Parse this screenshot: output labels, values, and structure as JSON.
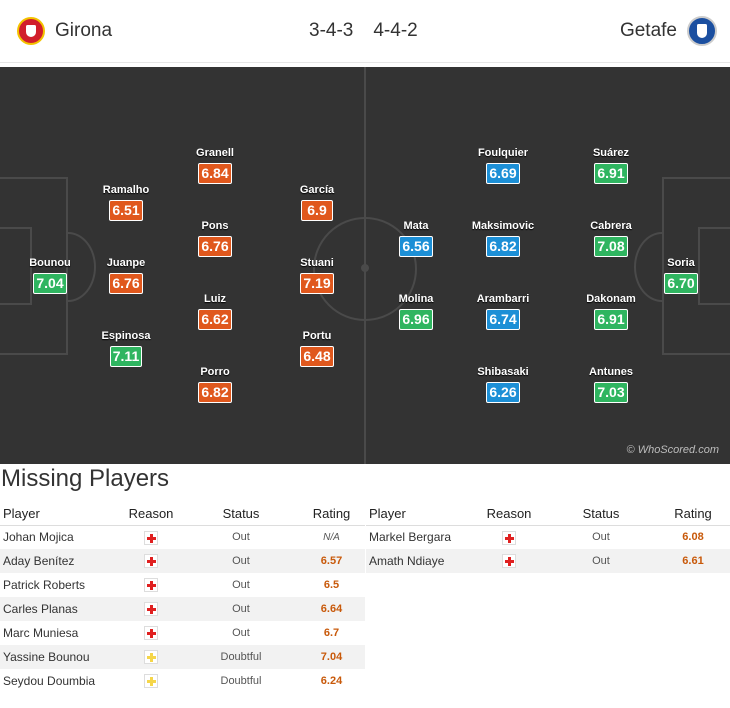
{
  "header": {
    "home_team": "Girona",
    "away_team": "Getafe",
    "home_formation": "3-4-3",
    "away_formation": "4-4-2"
  },
  "colors": {
    "rating_green": "#2fb560",
    "rating_orange": "#e0581d",
    "rating_blue": "#1c8fd6",
    "injury_red": "#e02020",
    "doubtful_yellow": "#f5d64a"
  },
  "pitch": {
    "watermark": "© WhoScored.com",
    "home_players": [
      {
        "name": "Bounou",
        "rating": "7.04",
        "color": "#2fb560"
      },
      {
        "name": "Ramalho",
        "rating": "6.51",
        "color": "#e0581d"
      },
      {
        "name": "Juanpe",
        "rating": "6.76",
        "color": "#e0581d"
      },
      {
        "name": "Espinosa",
        "rating": "7.11",
        "color": "#2fb560"
      },
      {
        "name": "Granell",
        "rating": "6.84",
        "color": "#e0581d"
      },
      {
        "name": "Pons",
        "rating": "6.76",
        "color": "#e0581d"
      },
      {
        "name": "Luiz",
        "rating": "6.62",
        "color": "#e0581d"
      },
      {
        "name": "Porro",
        "rating": "6.82",
        "color": "#e0581d"
      },
      {
        "name": "García",
        "rating": "6.9",
        "color": "#e0581d"
      },
      {
        "name": "Stuani",
        "rating": "7.19",
        "color": "#e0581d"
      },
      {
        "name": "Portu",
        "rating": "6.48",
        "color": "#e0581d"
      }
    ],
    "away_players": [
      {
        "name": "Mata",
        "rating": "6.56",
        "color": "#1c8fd6"
      },
      {
        "name": "Molina",
        "rating": "6.96",
        "color": "#2fb560"
      },
      {
        "name": "Foulquier",
        "rating": "6.69",
        "color": "#1c8fd6"
      },
      {
        "name": "Maksimovic",
        "rating": "6.82",
        "color": "#1c8fd6"
      },
      {
        "name": "Arambarri",
        "rating": "6.74",
        "color": "#1c8fd6"
      },
      {
        "name": "Shibasaki",
        "rating": "6.26",
        "color": "#1c8fd6"
      },
      {
        "name": "Suárez",
        "rating": "6.91",
        "color": "#2fb560"
      },
      {
        "name": "Cabrera",
        "rating": "7.08",
        "color": "#2fb560"
      },
      {
        "name": "Dakonam",
        "rating": "6.91",
        "color": "#2fb560"
      },
      {
        "name": "Antunes",
        "rating": "7.03",
        "color": "#2fb560"
      },
      {
        "name": "Soria",
        "rating": "6.70",
        "color": "#2fb560"
      }
    ]
  },
  "missing": {
    "title": "Missing Players",
    "columns": [
      "Player",
      "Reason",
      "Status",
      "Rating"
    ],
    "home": [
      {
        "player": "Johan Mojica",
        "reason": "injury-icon",
        "status": "Out",
        "rating": "N/A"
      },
      {
        "player": "Aday Benítez",
        "reason": "injury-icon",
        "status": "Out",
        "rating": "6.57"
      },
      {
        "player": "Patrick Roberts",
        "reason": "injury-icon",
        "status": "Out",
        "rating": "6.5"
      },
      {
        "player": "Carles Planas",
        "reason": "injury-icon",
        "status": "Out",
        "rating": "6.64"
      },
      {
        "player": "Marc Muniesa",
        "reason": "injury-icon",
        "status": "Out",
        "rating": "6.7"
      },
      {
        "player": "Yassine Bounou",
        "reason": "doubtful-icon",
        "status": "Doubtful",
        "rating": "7.04"
      },
      {
        "player": "Seydou Doumbia",
        "reason": "doubtful-icon",
        "status": "Doubtful",
        "rating": "6.24"
      }
    ],
    "away": [
      {
        "player": "Markel Bergara",
        "reason": "injury-icon",
        "status": "Out",
        "rating": "6.08"
      },
      {
        "player": "Amath Ndiaye",
        "reason": "injury-icon",
        "status": "Out",
        "rating": "6.61"
      }
    ]
  }
}
